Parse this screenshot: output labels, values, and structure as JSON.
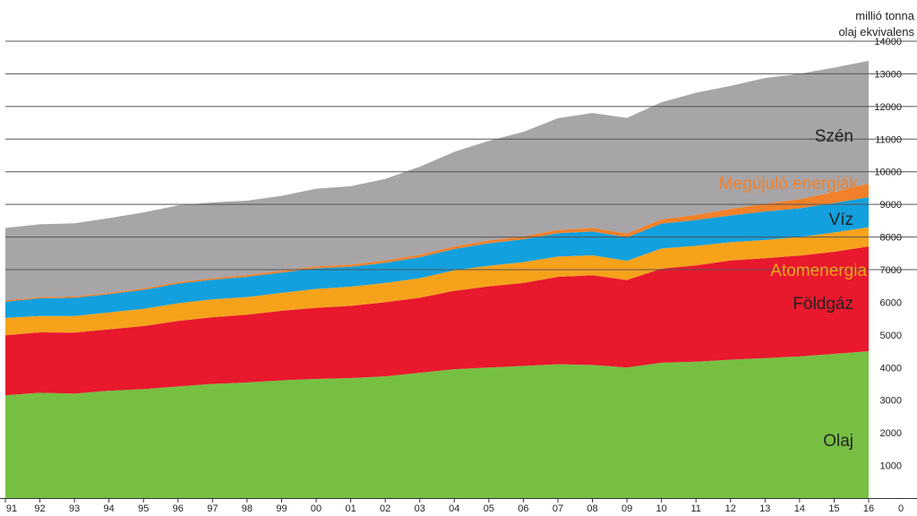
{
  "chart_data": {
    "type": "area",
    "stacked": true,
    "unit_label_lines": [
      "millió tonna",
      "olaj ekvivalens"
    ],
    "x": [
      "91",
      "92",
      "93",
      "94",
      "95",
      "96",
      "97",
      "98",
      "99",
      "00",
      "01",
      "02",
      "03",
      "04",
      "05",
      "06",
      "07",
      "08",
      "09",
      "10",
      "11",
      "12",
      "13",
      "14",
      "15",
      "16"
    ],
    "ylim": [
      0,
      14000
    ],
    "yticks": [
      0,
      1000,
      2000,
      3000,
      4000,
      5000,
      6000,
      7000,
      8000,
      9000,
      10000,
      11000,
      12000,
      13000,
      14000
    ],
    "y_axis_position": "right",
    "gridlines": [
      7000,
      8000,
      9000,
      10000,
      11000,
      12000,
      13000,
      14000
    ],
    "series": [
      {
        "name": "Olaj",
        "color": "#77bf43",
        "values": [
          3150,
          3230,
          3200,
          3290,
          3340,
          3420,
          3500,
          3540,
          3610,
          3650,
          3680,
          3730,
          3840,
          3950,
          4000,
          4050,
          4100,
          4080,
          4000,
          4150,
          4180,
          4240,
          4290,
          4340,
          4420,
          4500
        ]
      },
      {
        "name": "Földgáz",
        "color": "#e8182d",
        "values": [
          1840,
          1850,
          1870,
          1880,
          1930,
          2010,
          2040,
          2080,
          2130,
          2180,
          2210,
          2270,
          2300,
          2400,
          2490,
          2540,
          2680,
          2750,
          2680,
          2880,
          2950,
          3040,
          3060,
          3090,
          3130,
          3210
        ]
      },
      {
        "name": "Atomenergia",
        "color": "#f7a21b",
        "values": [
          530,
          500,
          510,
          520,
          530,
          540,
          550,
          540,
          550,
          580,
          590,
          590,
          600,
          630,
          630,
          640,
          620,
          610,
          590,
          620,
          600,
          560,
          560,
          570,
          590,
          590
        ]
      },
      {
        "name": "Víz",
        "color": "#13a0de",
        "values": [
          500,
          540,
          560,
          560,
          580,
          600,
          600,
          620,
          620,
          630,
          610,
          620,
          640,
          650,
          690,
          700,
          720,
          730,
          720,
          760,
          790,
          820,
          870,
          880,
          900,
          920
        ]
      },
      {
        "name": "Megújuló energiák",
        "color": "#f1812a",
        "values": [
          40,
          40,
          40,
          40,
          45,
          50,
          50,
          55,
          60,
          60,
          65,
          70,
          75,
          80,
          85,
          90,
          100,
          110,
          120,
          130,
          160,
          200,
          240,
          280,
          340,
          420
        ]
      },
      {
        "name": "Szén",
        "color": "#a7a5a8",
        "values": [
          2220,
          2230,
          2240,
          2290,
          2330,
          2350,
          2320,
          2280,
          2290,
          2380,
          2400,
          2500,
          2700,
          2900,
          3050,
          3200,
          3420,
          3520,
          3540,
          3590,
          3740,
          3770,
          3850,
          3840,
          3810,
          3760
        ]
      }
    ]
  }
}
